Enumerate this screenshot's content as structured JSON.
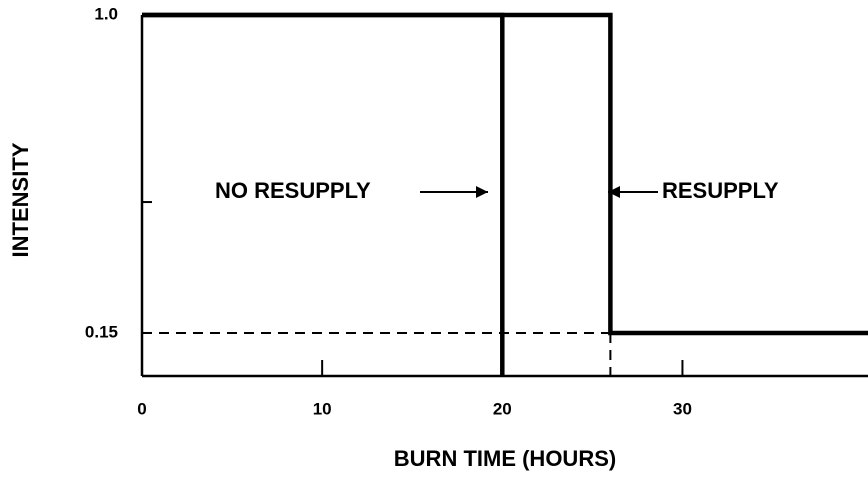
{
  "chart_data": {
    "type": "line",
    "x_label": "BURN TIME (HOURS)",
    "y_label": "INTENSITY",
    "xlim": [
      0,
      40.3
    ],
    "ylim": [
      0.035,
      1.0
    ],
    "xticks": [
      0,
      10,
      20,
      30
    ],
    "yticks": [
      0.15,
      {
        "value": 1.0,
        "label": "1.0"
      }
    ],
    "yminorticks": [
      0.5
    ],
    "color": "#000000",
    "series": [
      {
        "name": "NO RESUPPLY",
        "x": [
          0,
          20,
          20
        ],
        "values": [
          1.0,
          1.0,
          0.035
        ]
      },
      {
        "name": "RESUPPLY",
        "x": [
          0,
          26,
          26,
          40.3
        ],
        "values": [
          1.0,
          1.0,
          0.15,
          0.15
        ]
      }
    ],
    "dashed_lines": [
      {
        "x": [
          0,
          26
        ],
        "values": [
          0.15,
          0.15
        ]
      },
      {
        "x": [
          26,
          26
        ],
        "values": [
          0.15,
          0.035
        ]
      }
    ],
    "annotations": [
      "NO RESUPPLY",
      "RESUPPLY"
    ]
  }
}
